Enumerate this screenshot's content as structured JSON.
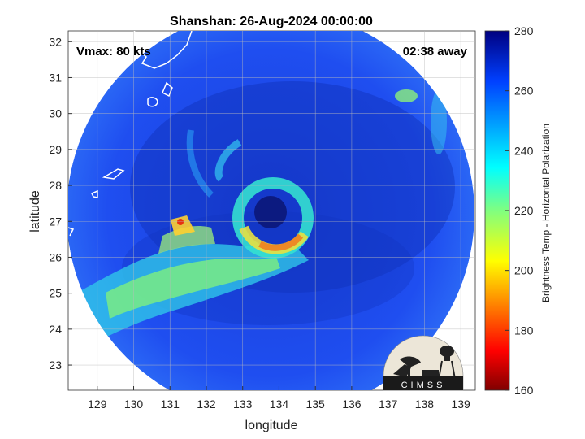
{
  "title": "Shanshan: 26-Aug-2024 00:00:00",
  "vmax_label": "Vmax: 80 kts",
  "time_away_label": "02:38 away",
  "x_axis": {
    "label": "longitude",
    "ticks": [
      "129",
      "130",
      "131",
      "132",
      "133",
      "134",
      "135",
      "136",
      "137",
      "138",
      "139"
    ],
    "range": [
      128.2,
      139.4
    ]
  },
  "y_axis": {
    "label": "latitude",
    "ticks": [
      "23",
      "24",
      "25",
      "26",
      "27",
      "28",
      "29",
      "30",
      "31",
      "32"
    ],
    "range": [
      22.3,
      32.3
    ]
  },
  "colorbar": {
    "label": "Brightness Temp - Horizontal Polarization",
    "ticks": [
      "160",
      "180",
      "200",
      "220",
      "240",
      "260",
      "280"
    ],
    "range": [
      160,
      280
    ],
    "colormap": "jet"
  },
  "storm": {
    "name": "Shanshan",
    "eye_center_lon": 133.9,
    "eye_center_lat": 27.05
  },
  "logo_text": "CIMSS",
  "grid": true
}
